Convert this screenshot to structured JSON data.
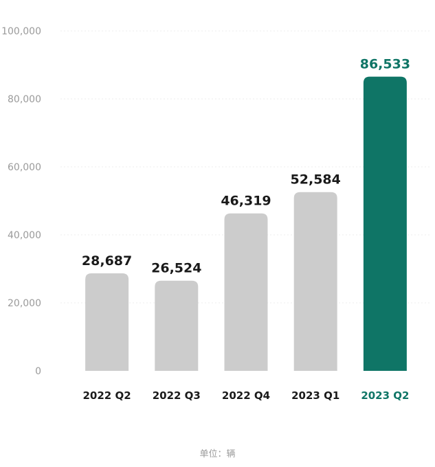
{
  "chart_data": {
    "type": "bar",
    "categories": [
      "2022 Q2",
      "2022 Q3",
      "2022 Q4",
      "2023 Q1",
      "2023 Q2"
    ],
    "values": [
      28687,
      26524,
      46319,
      52584,
      86533
    ],
    "value_labels": [
      "28,687",
      "26,524",
      "46,319",
      "52,584",
      "86,533"
    ],
    "highlight_index": 4,
    "ylim": [
      0,
      100000
    ],
    "yticks": [
      0,
      20000,
      40000,
      60000,
      80000,
      100000
    ],
    "ytick_labels": [
      "0",
      "20,000",
      "40,000",
      "60,000",
      "80,000",
      "100,000"
    ],
    "grid": true,
    "unit_note": "单位：辆",
    "colors": {
      "bar": "#cccccc",
      "highlight": "#0f7566",
      "label": "#1a1a1a",
      "axis_text": "#9a9a9a",
      "grid": "#ececec"
    }
  }
}
